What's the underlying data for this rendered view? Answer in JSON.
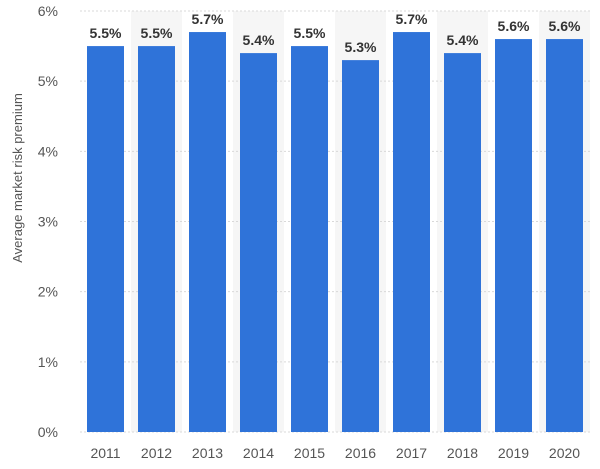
{
  "chart_data": {
    "type": "bar",
    "categories": [
      "2011",
      "2012",
      "2013",
      "2014",
      "2015",
      "2016",
      "2017",
      "2018",
      "2019",
      "2020"
    ],
    "values": [
      5.5,
      5.5,
      5.7,
      5.4,
      5.5,
      5.3,
      5.7,
      5.4,
      5.6,
      5.6
    ],
    "value_labels": [
      "5.5%",
      "5.5%",
      "5.7%",
      "5.4%",
      "5.5%",
      "5.3%",
      "5.7%",
      "5.4%",
      "5.6%",
      "5.6%"
    ],
    "title": "",
    "xlabel": "",
    "ylabel": "Average market risk premium",
    "ylim": [
      0,
      6
    ],
    "yticks": [
      0,
      1,
      2,
      3,
      4,
      5,
      6
    ],
    "ytick_labels": [
      "0%",
      "1%",
      "2%",
      "3%",
      "4%",
      "5%",
      "6%"
    ],
    "grid": true,
    "bar_color": "#2f73d9"
  }
}
